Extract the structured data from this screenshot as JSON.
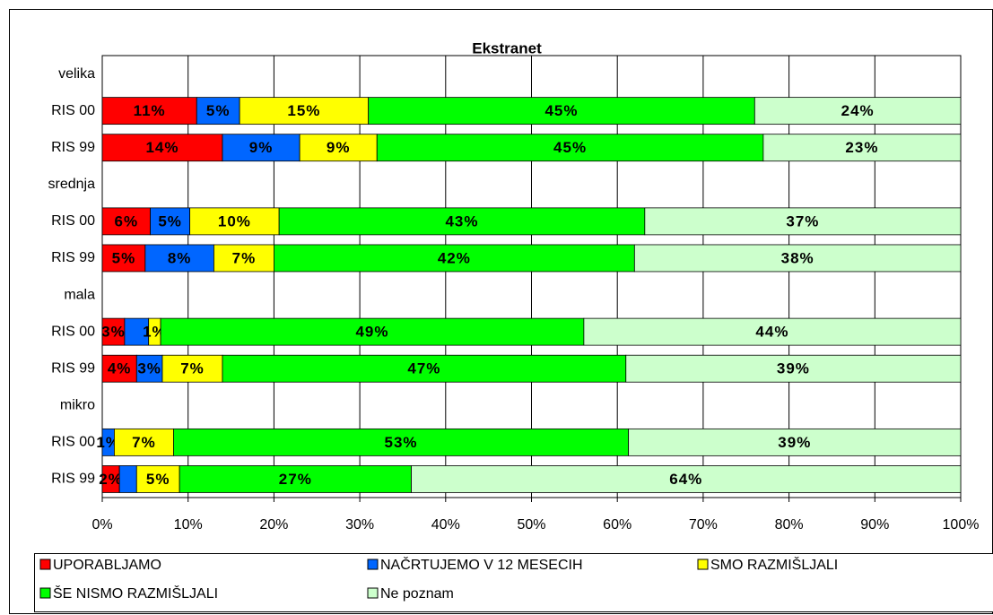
{
  "chart_data": {
    "type": "stacked_barh",
    "title": "Ekstranet",
    "categories": [
      "velika",
      "RIS 00",
      "RIS 99",
      "srednja",
      "RIS 00",
      "RIS 99",
      "mala",
      "RIS 00",
      "RIS 99",
      "mikro",
      "RIS 00",
      "RIS 99"
    ],
    "series": [
      {
        "name": "UPORABLJAMO",
        "color": "#ff0000",
        "values": [
          null,
          11,
          14,
          null,
          5.6,
          5,
          null,
          2.6,
          4,
          null,
          0,
          2
        ],
        "value_labels": [
          null,
          "11%",
          "14%",
          null,
          "6%",
          "5%",
          null,
          "3%",
          "4%",
          null,
          null,
          "2%"
        ]
      },
      {
        "name": "NAČRTUJEMO V 12 MESECIH",
        "color": "#0066ff",
        "values": [
          null,
          5,
          9,
          null,
          4.6,
          8,
          null,
          2.8,
          3,
          null,
          1.4,
          2
        ],
        "value_labels": [
          null,
          "5%",
          "9%",
          null,
          "5%",
          "8%",
          null,
          null,
          "3%",
          null,
          "1%",
          null
        ]
      },
      {
        "name": "SMO RAZMIŠLJALI",
        "color": "#ffff00",
        "values": [
          null,
          15,
          9,
          null,
          10.4,
          7,
          null,
          1.4,
          7,
          null,
          6.9,
          5
        ],
        "value_labels": [
          null,
          "15%",
          "9%",
          null,
          "10%",
          "7%",
          null,
          "1%",
          "7%",
          null,
          "7%",
          "5%"
        ]
      },
      {
        "name": "ŠE NISMO RAZMIŠLJALI",
        "color": "#00ff00",
        "values": [
          null,
          45,
          45,
          null,
          42.6,
          42,
          null,
          49.3,
          47,
          null,
          53,
          27
        ],
        "value_labels": [
          null,
          "45%",
          "45%",
          null,
          "43%",
          "42%",
          null,
          "49%",
          "47%",
          null,
          "53%",
          "27%"
        ]
      },
      {
        "name": "Ne poznam",
        "color": "#ccffcc",
        "values": [
          null,
          24,
          23,
          null,
          36.8,
          38,
          null,
          43.9,
          39,
          null,
          38.7,
          64
        ],
        "value_labels": [
          null,
          "24%",
          "23%",
          null,
          "37%",
          "38%",
          null,
          "44%",
          "39%",
          null,
          "39%",
          "64%"
        ]
      }
    ],
    "xlim": [
      0,
      100
    ],
    "xticks": [
      {
        "value": 0,
        "label": "0%"
      },
      {
        "value": 10,
        "label": "10%"
      },
      {
        "value": 20,
        "label": "20%"
      },
      {
        "value": 30,
        "label": "30%"
      },
      {
        "value": 40,
        "label": "40%"
      },
      {
        "value": 50,
        "label": "50%"
      },
      {
        "value": 60,
        "label": "60%"
      },
      {
        "value": 70,
        "label": "70%"
      },
      {
        "value": 80,
        "label": "80%"
      },
      {
        "value": 90,
        "label": "90%"
      },
      {
        "value": 100,
        "label": "100%"
      }
    ],
    "grid": true
  }
}
